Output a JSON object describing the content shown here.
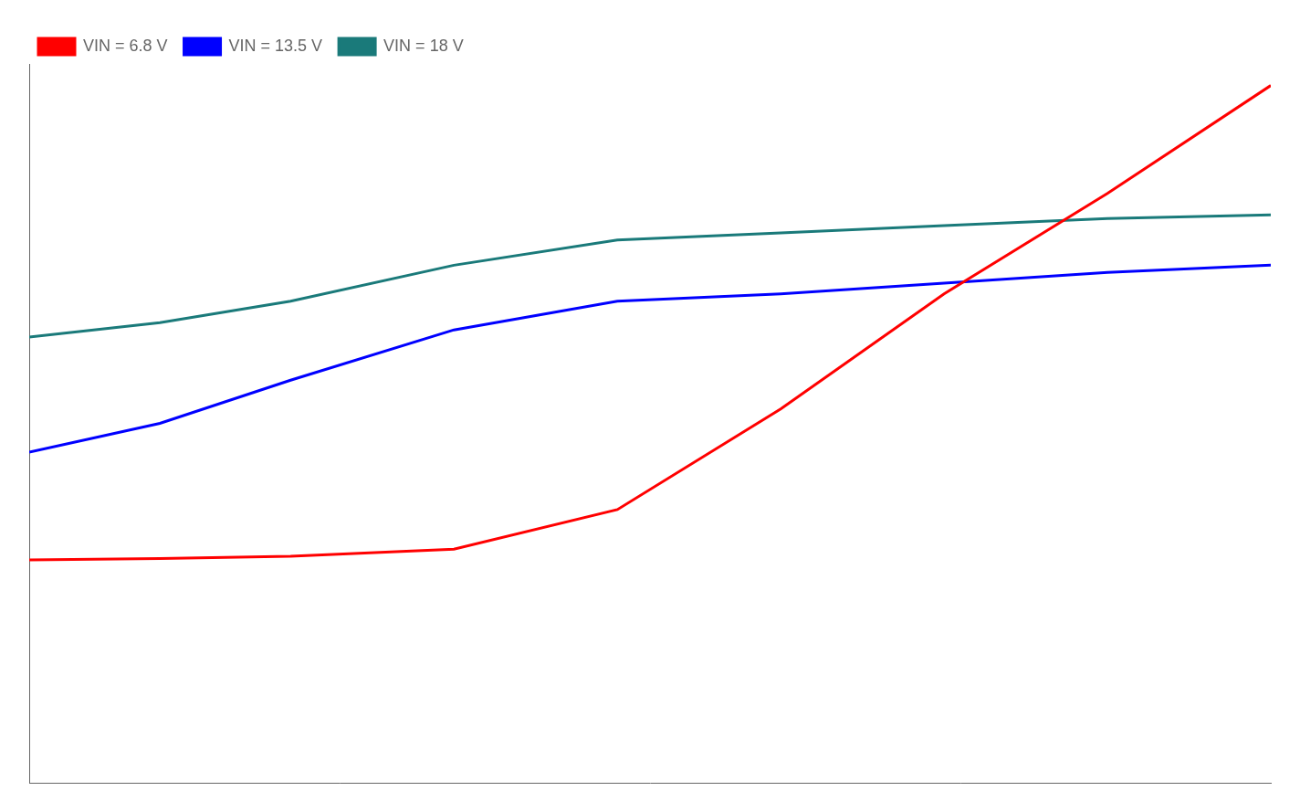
{
  "chart_data": {
    "type": "line",
    "x": [
      -40,
      -20,
      0,
      25,
      50,
      75,
      100,
      125,
      150
    ],
    "series": [
      {
        "name": "VIN = 6.8 V",
        "color": "#ff0000",
        "values": [
          0.31,
          0.312,
          0.315,
          0.325,
          0.38,
          0.52,
          0.68,
          0.82,
          0.97
        ]
      },
      {
        "name": "VIN = 13.5 V",
        "color": "#0000ff",
        "values": [
          0.46,
          0.5,
          0.56,
          0.63,
          0.67,
          0.68,
          0.695,
          0.71,
          0.72
        ]
      },
      {
        "name": "VIN = 18 V",
        "color": "#1a7a7a",
        "values": [
          0.62,
          0.64,
          0.67,
          0.72,
          0.755,
          0.765,
          0.775,
          0.785,
          0.79
        ]
      }
    ],
    "xlim": [
      -40,
      150
    ],
    "ylim": [
      0,
      1.0
    ],
    "grid": false,
    "legend": "upper left",
    "tick_labels": false
  }
}
